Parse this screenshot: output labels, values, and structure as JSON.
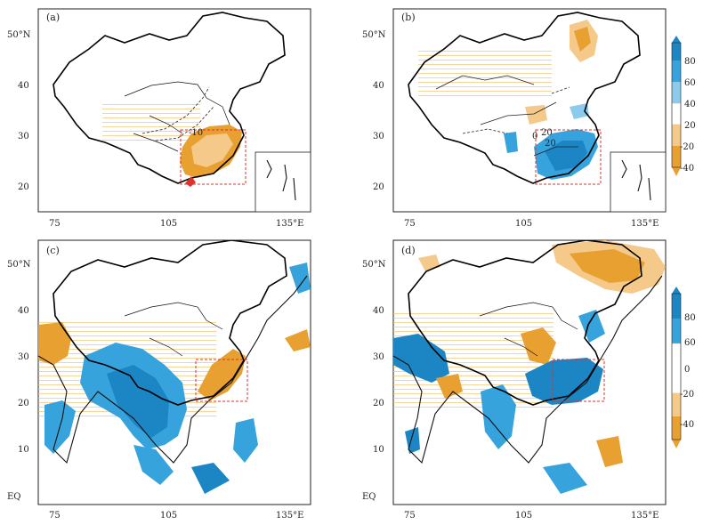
{
  "figure": {
    "panels": [
      {
        "id": "a",
        "label": "(a)",
        "contour_labels": [
          "-10"
        ],
        "y_ticks": [
          "50°N",
          "40",
          "30",
          "20"
        ],
        "x_ticks": [
          "75",
          "105",
          "135°E"
        ]
      },
      {
        "id": "b",
        "label": "(b)",
        "contour_labels": [
          "0",
          "20",
          "20"
        ],
        "y_ticks": [
          "50°N",
          "40",
          "30",
          "20"
        ],
        "x_ticks": [
          "75",
          "105",
          "135°E"
        ]
      },
      {
        "id": "c",
        "label": "(c)",
        "y_ticks": [
          "50°N",
          "40",
          "30",
          "20",
          "10",
          "EQ"
        ],
        "x_ticks": [
          "75",
          "105",
          "135°E"
        ]
      },
      {
        "id": "d",
        "label": "(d)",
        "y_ticks": [
          "50°N",
          "40",
          "30",
          "20",
          "10",
          "EQ"
        ],
        "x_ticks": [
          "75",
          "105",
          "135°E"
        ]
      }
    ],
    "colorbar_top": {
      "labels": [
        "80",
        "60",
        "40",
        "20",
        "-20",
        "-40"
      ]
    },
    "colorbar_bottom": {
      "labels": [
        "80",
        "60",
        "0",
        "-20",
        "-40"
      ]
    },
    "colors": {
      "blue_dark": "#1c86c4",
      "blue_mid": "#36a3dd",
      "blue_light": "#8ccbee",
      "orange_dark": "#e8a030",
      "orange_light": "#f4c98a",
      "box": "#e0302a"
    }
  }
}
